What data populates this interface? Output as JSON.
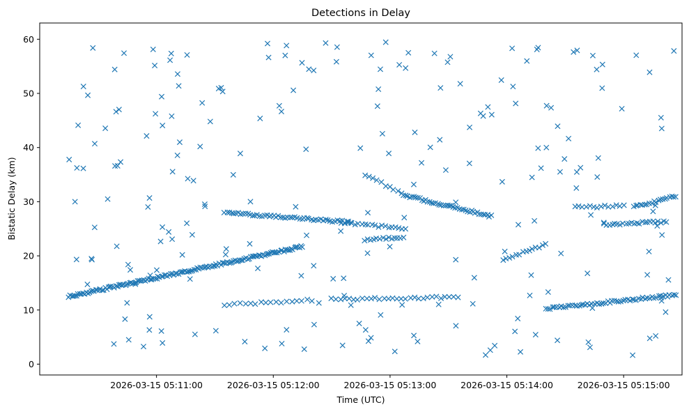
{
  "chart_data": {
    "type": "scatter",
    "title": "Detections in Delay",
    "xlabel": "Time (UTC)",
    "ylabel": "Bistatic Delay (km)",
    "marker": "x",
    "color": "#1f77b4",
    "xlim": [
      0,
      330
    ],
    "ylim": [
      -2,
      63
    ],
    "x_unit": "seconds after 2026-03-15 05:10:00 UTC",
    "xticks": [
      {
        "value": 60,
        "label": "2026-03-15 05:11:00"
      },
      {
        "value": 120,
        "label": "2026-03-15 05:12:00"
      },
      {
        "value": 180,
        "label": "2026-03-15 05:13:00"
      },
      {
        "value": 240,
        "label": "2026-03-15 05:14:00"
      },
      {
        "value": 300,
        "label": "2026-03-15 05:15:00"
      }
    ],
    "yticks": [
      0,
      10,
      20,
      30,
      40,
      50,
      60
    ],
    "tracks": [
      {
        "name": "track-rising",
        "x_start": 15,
        "x_end": 135,
        "y_start": 12.5,
        "y_end": 21.7,
        "n": 150
      },
      {
        "name": "track-falling-1",
        "x_start": 95,
        "x_end": 160,
        "y_start": 28.0,
        "y_end": 26.2,
        "n": 55
      },
      {
        "name": "track-falling-2",
        "x_start": 155,
        "x_end": 188,
        "y_start": 26.0,
        "y_end": 25.1,
        "n": 20
      },
      {
        "name": "track-falling-3",
        "x_start": 167,
        "x_end": 186,
        "y_start": 35.0,
        "y_end": 31.5,
        "n": 10
      },
      {
        "name": "track-falling-4",
        "x_start": 187,
        "x_end": 232,
        "y_start": 31.2,
        "y_end": 27.3,
        "n": 45
      },
      {
        "name": "track-mid-1",
        "x_start": 167,
        "x_end": 187,
        "y_start": 23.0,
        "y_end": 23.5,
        "n": 14
      },
      {
        "name": "track-mid-2",
        "x_start": 238,
        "x_end": 260,
        "y_start": 19.3,
        "y_end": 22.1,
        "n": 14
      },
      {
        "name": "track-late-1",
        "x_start": 275,
        "x_end": 300,
        "y_start": 29.0,
        "y_end": 29.2,
        "n": 14
      },
      {
        "name": "track-late-2",
        "x_start": 290,
        "x_end": 322,
        "y_start": 25.8,
        "y_end": 26.3,
        "n": 24
      },
      {
        "name": "track-late-3",
        "x_start": 305,
        "x_end": 327,
        "y_start": 29.0,
        "y_end": 31.0,
        "n": 20
      },
      {
        "name": "track-low-late",
        "x_start": 260,
        "x_end": 327,
        "y_start": 10.2,
        "y_end": 12.8,
        "n": 60
      },
      {
        "name": "track-low-1",
        "x_start": 95,
        "x_end": 140,
        "y_start": 11.0,
        "y_end": 11.8,
        "n": 18
      },
      {
        "name": "track-low-2",
        "x_start": 150,
        "x_end": 215,
        "y_start": 12.0,
        "y_end": 12.4,
        "n": 30
      }
    ],
    "clutter": {
      "count": 230,
      "x_range": [
        15,
        327
      ],
      "y_range": [
        1,
        60
      ]
    }
  }
}
